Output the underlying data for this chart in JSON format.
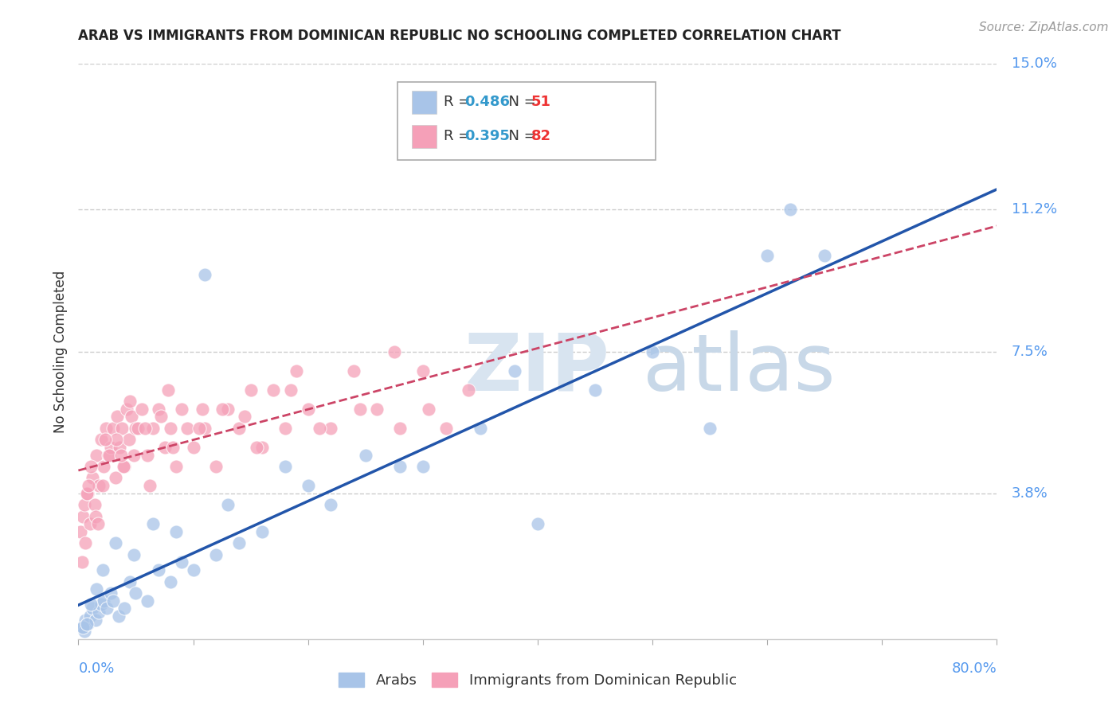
{
  "title": "ARAB VS IMMIGRANTS FROM DOMINICAN REPUBLIC NO SCHOOLING COMPLETED CORRELATION CHART",
  "source": "Source: ZipAtlas.com",
  "xmin": 0.0,
  "xmax": 80.0,
  "ymin": 0.0,
  "ymax": 15.0,
  "legend_arab_R": "0.486",
  "legend_arab_N": "51",
  "legend_dr_R": "0.395",
  "legend_dr_N": "82",
  "color_arab": "#a8c4e8",
  "color_dr": "#f5a0b8",
  "color_arab_line": "#2255aa",
  "color_dr_line": "#cc4466",
  "watermark_ZIP": "ZIP",
  "watermark_atlas": "atlas",
  "ytick_vals": [
    3.8,
    7.5,
    11.2,
    15.0
  ],
  "ytick_labels": [
    "3.8%",
    "7.5%",
    "11.2%",
    "15.0%"
  ],
  "arab_x": [
    0.3,
    0.5,
    0.6,
    0.8,
    1.0,
    1.2,
    1.5,
    1.8,
    2.0,
    2.2,
    2.5,
    2.8,
    3.0,
    3.5,
    4.0,
    4.5,
    5.0,
    6.0,
    7.0,
    8.0,
    9.0,
    10.0,
    11.0,
    12.0,
    14.0,
    16.0,
    18.0,
    20.0,
    22.0,
    25.0,
    28.0,
    30.0,
    35.0,
    40.0,
    45.0,
    50.0,
    55.0,
    60.0,
    62.0,
    65.0,
    0.4,
    0.7,
    1.1,
    1.6,
    2.1,
    3.2,
    4.8,
    6.5,
    8.5,
    13.0,
    38.0
  ],
  "arab_y": [
    0.3,
    0.2,
    0.5,
    0.4,
    0.6,
    0.8,
    0.5,
    0.7,
    0.9,
    1.0,
    0.8,
    1.2,
    1.0,
    0.6,
    0.8,
    1.5,
    1.2,
    1.0,
    1.8,
    1.5,
    2.0,
    1.8,
    9.5,
    2.2,
    2.5,
    2.8,
    4.5,
    4.0,
    3.5,
    4.8,
    4.5,
    4.5,
    5.5,
    3.0,
    6.5,
    7.5,
    5.5,
    10.0,
    11.2,
    10.0,
    0.3,
    0.4,
    0.9,
    1.3,
    1.8,
    2.5,
    2.2,
    3.0,
    2.8,
    3.5,
    7.0
  ],
  "dr_x": [
    0.2,
    0.4,
    0.5,
    0.6,
    0.8,
    1.0,
    1.2,
    1.4,
    1.6,
    1.8,
    2.0,
    2.2,
    2.4,
    2.6,
    2.8,
    3.0,
    3.2,
    3.4,
    3.6,
    3.8,
    4.0,
    4.2,
    4.4,
    4.6,
    4.8,
    5.0,
    5.5,
    6.0,
    6.5,
    7.0,
    7.5,
    8.0,
    8.5,
    9.0,
    9.5,
    10.0,
    11.0,
    12.0,
    13.0,
    14.0,
    15.0,
    16.0,
    17.0,
    18.0,
    19.0,
    20.0,
    22.0,
    24.0,
    26.0,
    28.0,
    30.0,
    32.0,
    34.0,
    0.3,
    0.7,
    1.1,
    1.5,
    2.1,
    2.7,
    3.3,
    3.9,
    4.5,
    5.2,
    6.2,
    7.2,
    8.2,
    10.5,
    12.5,
    15.5,
    18.5,
    21.0,
    24.5,
    27.5,
    30.5,
    0.9,
    1.7,
    2.3,
    3.7,
    5.8,
    7.8,
    10.8,
    14.5
  ],
  "dr_y": [
    2.8,
    3.2,
    3.5,
    2.5,
    3.8,
    3.0,
    4.2,
    3.5,
    4.8,
    4.0,
    5.2,
    4.5,
    5.5,
    4.8,
    5.0,
    5.5,
    4.2,
    5.8,
    5.0,
    5.5,
    4.5,
    6.0,
    5.2,
    5.8,
    4.8,
    5.5,
    6.0,
    4.8,
    5.5,
    6.0,
    5.0,
    5.5,
    4.5,
    6.0,
    5.5,
    5.0,
    5.5,
    4.5,
    6.0,
    5.5,
    6.5,
    5.0,
    6.5,
    5.5,
    7.0,
    6.0,
    5.5,
    7.0,
    6.0,
    5.5,
    7.0,
    5.5,
    6.5,
    2.0,
    3.8,
    4.5,
    3.2,
    4.0,
    4.8,
    5.2,
    4.5,
    6.2,
    5.5,
    4.0,
    5.8,
    5.0,
    5.5,
    6.0,
    5.0,
    6.5,
    5.5,
    6.0,
    7.5,
    6.0,
    4.0,
    3.0,
    5.2,
    4.8,
    5.5,
    6.5,
    6.0,
    5.8
  ]
}
